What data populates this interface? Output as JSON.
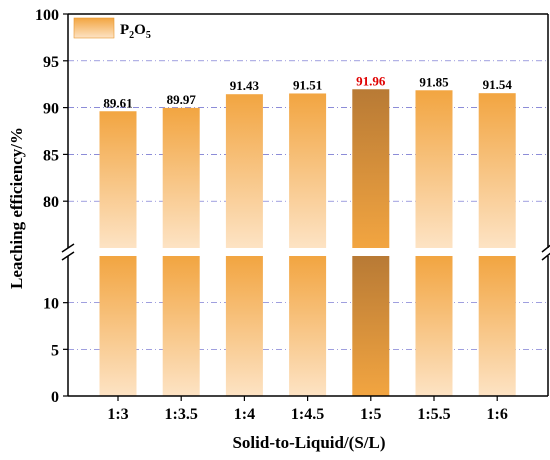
{
  "chart_data": {
    "type": "bar",
    "title": "",
    "xlabel": "Solid-to-Liquid/(S/L)",
    "ylabel": "Leaching efficiency/%",
    "categories": [
      "1:3",
      "1:3.5",
      "1:4",
      "1:4.5",
      "1:5",
      "1:5.5",
      "1:6"
    ],
    "series": [
      {
        "name": "P2O5",
        "values": [
          89.61,
          89.97,
          91.43,
          91.51,
          91.96,
          91.85,
          91.54
        ],
        "value_labels": [
          "89.61",
          "89.97",
          "91.43",
          "91.51",
          "91.96",
          "91.85",
          "91.54"
        ]
      }
    ],
    "legend": {
      "label_main": "P",
      "sub1": "2",
      "mid": "O",
      "sub2": "5",
      "position": "top-left"
    },
    "y_axis_broken": true,
    "upper_segment": {
      "ylim": [
        75,
        100
      ],
      "ticks": [
        "80",
        "85",
        "90",
        "95",
        "100"
      ],
      "tick_values": [
        80,
        85,
        90,
        95,
        100
      ]
    },
    "lower_segment": {
      "ylim": [
        0,
        15
      ],
      "ticks": [
        "0",
        "5",
        "10"
      ],
      "tick_values": [
        0,
        5,
        10
      ]
    },
    "highlight_index": 4,
    "grid": true,
    "colors": {
      "bar_top": "#f2a541",
      "bar_bottom": "#fde3c4",
      "bar_highlight": "#b87a35",
      "highlight_label": "#e00000",
      "grid": "#6666cc"
    }
  }
}
